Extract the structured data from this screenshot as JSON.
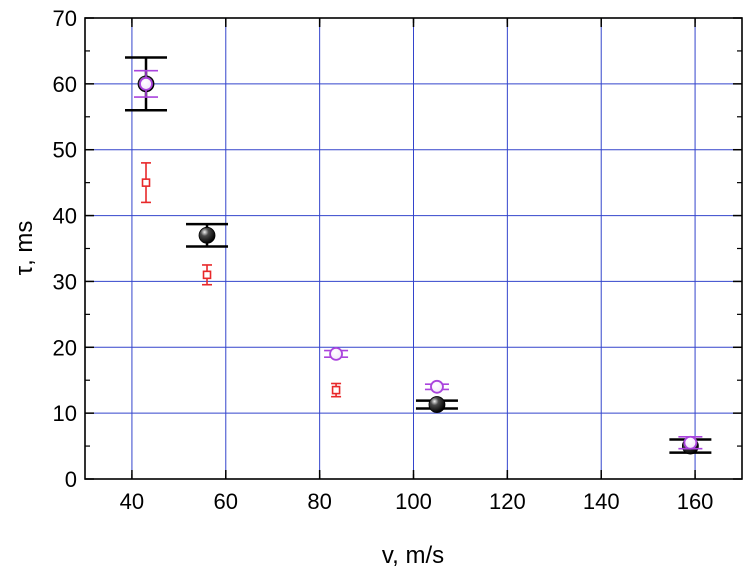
{
  "chart_data": {
    "type": "scatter",
    "title": "",
    "xlabel": "v, m/s",
    "ylabel": "τ, ms",
    "xlim": [
      30,
      170
    ],
    "ylim": [
      0,
      70
    ],
    "x_ticks": [
      40,
      60,
      80,
      100,
      120,
      140,
      160
    ],
    "x_tick_labels": [
      "40",
      "60",
      "80",
      "100",
      "120",
      "140",
      "160"
    ],
    "y_ticks": [
      0,
      10,
      20,
      30,
      40,
      50,
      60,
      70
    ],
    "y_tick_labels": [
      "0",
      "10",
      "20",
      "30",
      "40",
      "50",
      "60",
      "70"
    ],
    "grid": true,
    "legend": "none",
    "colors": {
      "grid": "#3344cc",
      "black": "#000000",
      "red": "#e8282a",
      "purple": "#aa44dd"
    },
    "series": [
      {
        "marker": "filled-sphere",
        "color": "#000000",
        "points": [
          {
            "x": 43,
            "y": 60,
            "err": 4
          },
          {
            "x": 56,
            "y": 37,
            "err": 1.7
          },
          {
            "x": 105,
            "y": 11.3,
            "err": 0.6
          },
          {
            "x": 159,
            "y": 5,
            "err": 1
          }
        ]
      },
      {
        "marker": "open-square",
        "color": "#e8282a",
        "points": [
          {
            "x": 43,
            "y": 45,
            "err": 3
          },
          {
            "x": 56,
            "y": 31,
            "err": 1.5
          },
          {
            "x": 83.5,
            "y": 13.5,
            "err": 1
          }
        ]
      },
      {
        "marker": "open-circle",
        "color": "#aa44dd",
        "points": [
          {
            "x": 43,
            "y": 60,
            "err": 2
          },
          {
            "x": 83.5,
            "y": 19,
            "err": 0.5
          },
          {
            "x": 105,
            "y": 14,
            "err": 0.4
          },
          {
            "x": 159,
            "y": 5.5,
            "err": 0.9
          }
        ]
      }
    ]
  }
}
